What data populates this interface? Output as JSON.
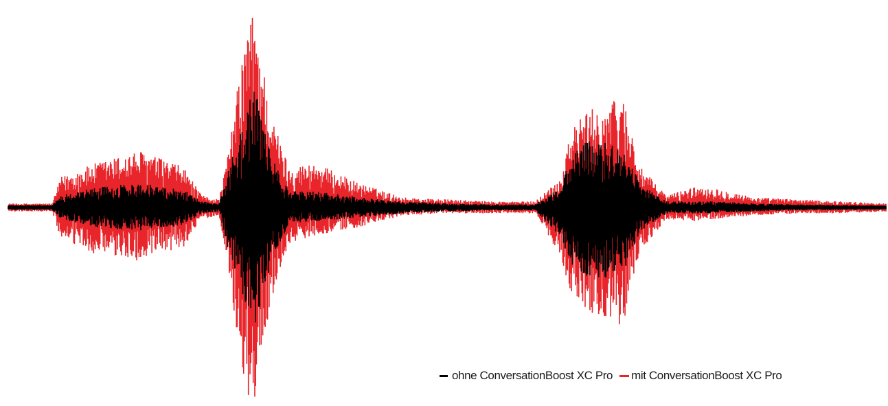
{
  "chart_data": {
    "type": "line",
    "title": "",
    "xlabel": "",
    "ylabel": "",
    "grid": false,
    "legend_placement": "bottom-right",
    "axes_visible": false,
    "x_range": [
      0,
      100
    ],
    "y_range": [
      -1,
      1
    ],
    "series": [
      {
        "name": "mit ConversationBoost XC Pro",
        "color": "#e8252a",
        "envelope": {
          "x": [
            0,
            5,
            6,
            10,
            15,
            20,
            22,
            24,
            25,
            27,
            28,
            30,
            32,
            35,
            40,
            45,
            50,
            55,
            60,
            63,
            64,
            66,
            68,
            70,
            72,
            75,
            78,
            80,
            85,
            90,
            95,
            100
          ],
          "upper": [
            0.02,
            0.02,
            0.15,
            0.22,
            0.28,
            0.2,
            0.06,
            0.04,
            0.25,
            0.85,
            0.98,
            0.45,
            0.2,
            0.22,
            0.12,
            0.05,
            0.04,
            0.03,
            0.03,
            0.15,
            0.38,
            0.48,
            0.5,
            0.56,
            0.2,
            0.06,
            0.1,
            0.1,
            0.05,
            0.04,
            0.03,
            0.02
          ],
          "lower": [
            -0.02,
            -0.02,
            -0.16,
            -0.24,
            -0.27,
            -0.2,
            -0.06,
            -0.04,
            -0.28,
            -0.95,
            -1.0,
            -0.46,
            -0.18,
            -0.14,
            -0.1,
            -0.04,
            -0.03,
            -0.03,
            -0.03,
            -0.25,
            -0.42,
            -0.53,
            -0.55,
            -0.6,
            -0.22,
            -0.06,
            -0.07,
            -0.06,
            -0.04,
            -0.03,
            -0.03,
            -0.02
          ]
        }
      },
      {
        "name": "ohne ConversationBoost XC Pro",
        "color": "#000000",
        "envelope": {
          "x": [
            0,
            5,
            6,
            10,
            15,
            20,
            22,
            24,
            25,
            27,
            28,
            30,
            32,
            35,
            40,
            45,
            50,
            55,
            60,
            63,
            64,
            66,
            68,
            70,
            72,
            75,
            78,
            80,
            85,
            90,
            95,
            100
          ],
          "upper": [
            0.012,
            0.012,
            0.06,
            0.1,
            0.12,
            0.09,
            0.03,
            0.02,
            0.18,
            0.45,
            0.6,
            0.25,
            0.08,
            0.08,
            0.05,
            0.03,
            0.02,
            0.015,
            0.015,
            0.1,
            0.25,
            0.33,
            0.32,
            0.3,
            0.12,
            0.03,
            0.03,
            0.03,
            0.02,
            0.015,
            0.012,
            0.01
          ],
          "lower": [
            -0.012,
            -0.012,
            -0.06,
            -0.1,
            -0.12,
            -0.09,
            -0.03,
            -0.02,
            -0.2,
            -0.5,
            -0.62,
            -0.27,
            -0.08,
            -0.07,
            -0.05,
            -0.03,
            -0.02,
            -0.015,
            -0.015,
            -0.15,
            -0.28,
            -0.35,
            -0.36,
            -0.34,
            -0.12,
            -0.03,
            -0.03,
            -0.03,
            -0.02,
            -0.015,
            -0.012,
            -0.01
          ]
        }
      }
    ]
  },
  "legend": {
    "items": [
      {
        "label": "ohne ConversationBoost XC Pro",
        "color": "#000000"
      },
      {
        "label": "mit ConversationBoost XC Pro",
        "color": "#e8252a"
      }
    ]
  }
}
